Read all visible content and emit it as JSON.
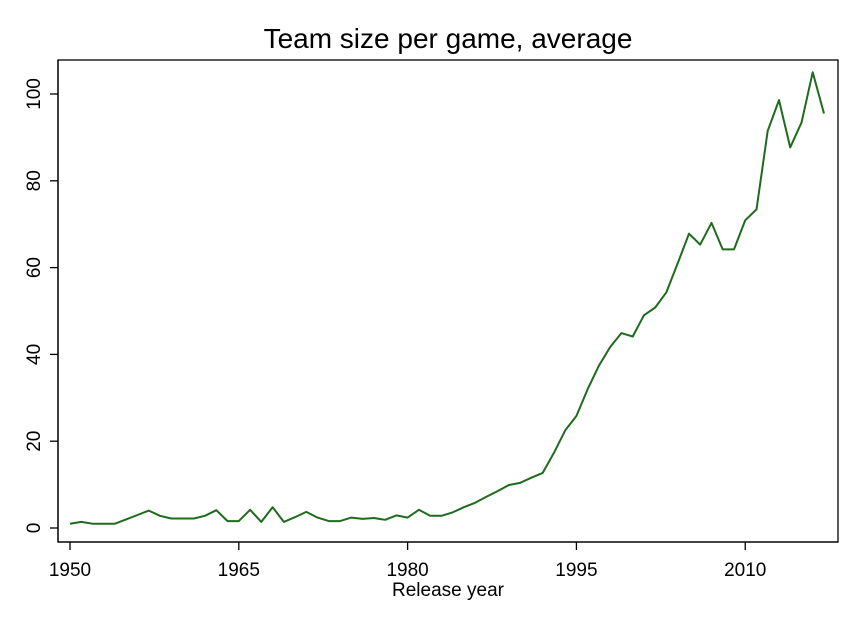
{
  "chart_data": {
    "type": "line",
    "title": "Team size per game, average",
    "xlabel": "Release year",
    "ylabel": "",
    "xlim": [
      1950,
      2017
    ],
    "ylim": [
      0,
      105
    ],
    "xticks": [
      1950,
      1965,
      1980,
      1995,
      2010
    ],
    "yticks": [
      0,
      20,
      40,
      60,
      80,
      100
    ],
    "grid": false,
    "line_color": "#1e6b1e",
    "series": [
      {
        "name": "Team size per game, average",
        "x": [
          1950,
          1951,
          1952,
          1953,
          1954,
          1955,
          1956,
          1957,
          1958,
          1959,
          1960,
          1961,
          1962,
          1963,
          1964,
          1965,
          1966,
          1967,
          1968,
          1969,
          1970,
          1971,
          1972,
          1973,
          1974,
          1975,
          1976,
          1977,
          1978,
          1979,
          1980,
          1981,
          1982,
          1983,
          1984,
          1985,
          1986,
          1987,
          1988,
          1989,
          1990,
          1991,
          1992,
          1993,
          1994,
          1995,
          1996,
          1997,
          1998,
          1999,
          2000,
          2001,
          2002,
          2003,
          2004,
          2005,
          2006,
          2007,
          2008,
          2009,
          2010,
          2011,
          2012,
          2013,
          2014,
          2015,
          2016,
          2017
        ],
        "y": [
          1,
          1.4,
          1,
          1,
          1,
          2,
          3,
          4,
          2.8,
          2.2,
          2.2,
          2.2,
          2.8,
          4.1,
          1.6,
          1.6,
          4.2,
          1.4,
          4.8,
          1.4,
          2.5,
          3.7,
          2.4,
          1.6,
          1.6,
          2.4,
          2.1,
          2.3,
          1.9,
          2.9,
          2.4,
          4.2,
          2.8,
          2.8,
          3.6,
          4.8,
          5.8,
          7.2,
          8.5,
          9.9,
          10.4,
          11.6,
          12.7,
          17.3,
          22.5,
          25.8,
          32,
          37.4,
          41.7,
          44.9,
          44.1,
          49,
          50.8,
          54.3,
          61,
          67.8,
          65.3,
          70.3,
          64.2,
          64.2,
          70.9,
          73.4,
          91.5,
          98.6,
          87.7,
          93.4,
          105,
          95.5
        ]
      }
    ]
  }
}
